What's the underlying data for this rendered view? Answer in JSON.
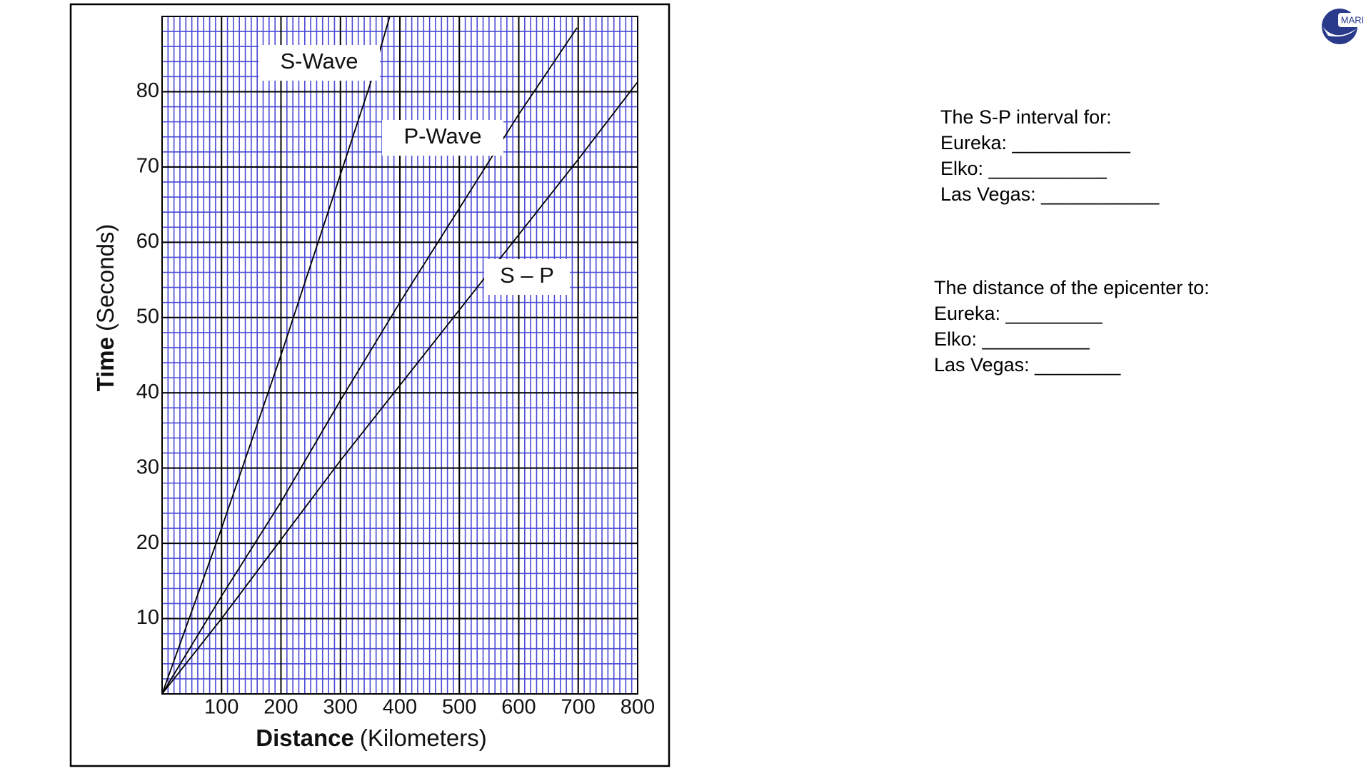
{
  "chart_data": {
    "type": "line",
    "xlabel": [
      "Distance",
      "(Kilometers)"
    ],
    "ylabel": [
      "Time",
      "(Seconds)"
    ],
    "xlim": [
      0,
      800
    ],
    "xticks": [
      100,
      200,
      300,
      400,
      500,
      600,
      700,
      800
    ],
    "ylim": [
      0,
      90
    ],
    "yticks": [
      10,
      20,
      30,
      40,
      50,
      60,
      70,
      80
    ],
    "grid": true,
    "series": [
      {
        "name": "S-Wave",
        "color": "#000000",
        "x": [
          0,
          100,
          200,
          300,
          350,
          383
        ],
        "values": [
          0,
          22,
          45,
          69,
          81,
          90
        ]
      },
      {
        "name": "P-Wave",
        "color": "#000000",
        "x": [
          0,
          100,
          200,
          300,
          400,
          500,
          600,
          698
        ],
        "values": [
          0,
          13,
          25.5,
          39,
          52,
          64.5,
          77,
          88.5
        ]
      },
      {
        "name": "S – P",
        "color": "#000000",
        "x": [
          0,
          100,
          200,
          300,
          400,
          500,
          600,
          700,
          800
        ],
        "values": [
          0,
          10,
          20.5,
          31,
          41,
          51,
          61,
          71,
          81.3
        ]
      }
    ]
  },
  "notes": {
    "interval": [
      "The S-P interval for:",
      "Eureka: ___________",
      "Elko: ___________",
      "Las Vegas: ___________"
    ],
    "distance": [
      "The distance of the epicenter to:",
      "Eureka: _________",
      "Elko: __________",
      "Las Vegas: ________"
    ]
  },
  "logo_text": "MARI"
}
